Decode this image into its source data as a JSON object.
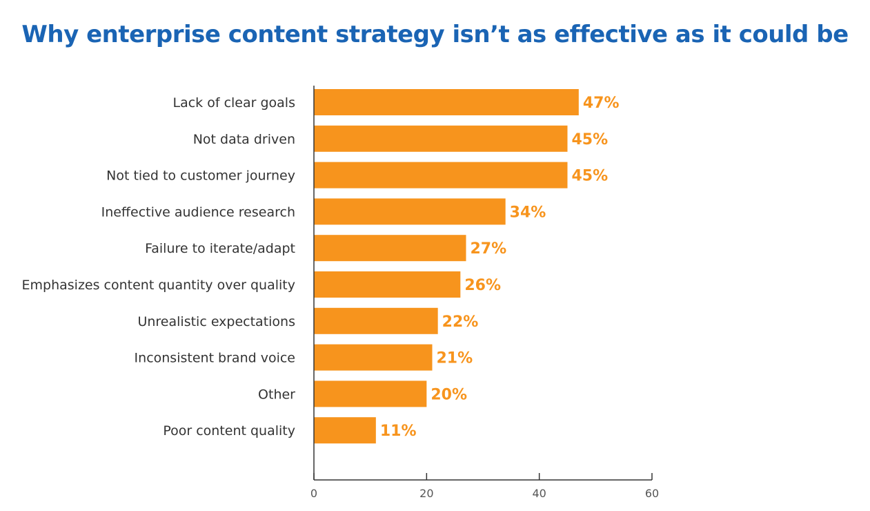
{
  "chart_data": {
    "type": "bar",
    "orientation": "horizontal",
    "title": "Why enterprise content strategy isn’t as effective as it could be",
    "categories": [
      "Lack of clear goals",
      "Not data driven",
      "Not tied to customer journey",
      "Ineffective audience research",
      "Failure to iterate/adapt",
      "Emphasizes content quantity over quality",
      "Unrealistic expectations",
      "Inconsistent brand voice",
      "Other",
      "Poor content quality"
    ],
    "values": [
      47,
      45,
      45,
      34,
      27,
      26,
      22,
      21,
      20,
      11
    ],
    "value_labels": [
      "47%",
      "45%",
      "45%",
      "34%",
      "27%",
      "26%",
      "22%",
      "21%",
      "20%",
      "11%"
    ],
    "xlim": [
      0,
      60
    ],
    "xticks": [
      0,
      20,
      40,
      60
    ],
    "xtick_labels": [
      "0",
      "20",
      "40",
      "60"
    ],
    "xlabel": "",
    "ylabel": "",
    "grid": false,
    "legend": "none",
    "colors": {
      "bar": "#f7941d",
      "value_label": "#f7941d",
      "title": "#1a64b4",
      "axis": "#333333"
    }
  }
}
